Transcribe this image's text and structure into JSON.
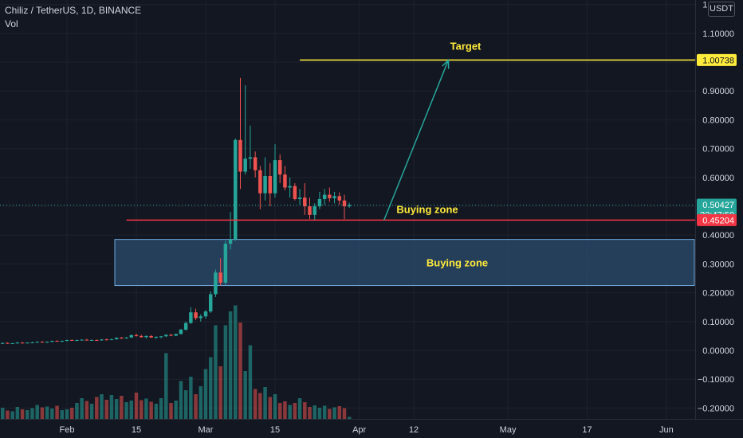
{
  "legend": {
    "symbol": "Chiliz / TetherUS, 1D, BINANCE",
    "volume_label": "Vol"
  },
  "currency_badge": "USDT",
  "colors": {
    "background": "#131722",
    "up": "#26a69a",
    "down": "#ef5350",
    "target": "#ffeb3b",
    "support": "#f23645",
    "zone_fill": "#2a4a6b",
    "zone_border": "#6fa8dc",
    "arrow": "#26a69a",
    "axis_text": "#d1d4dc"
  },
  "chart_data": {
    "type": "candlestick",
    "y_axis": {
      "ticks": [
        "1.20000",
        "1.10000",
        "1.00000",
        "0.90000",
        "0.80000",
        "0.70000",
        "0.60000",
        "0.50000",
        "0.40000",
        "0.30000",
        "0.20000",
        "0.10000",
        "0.00000",
        "−0.10000",
        "−0.20000"
      ],
      "tick_values": [
        1.2,
        1.1,
        1.0,
        0.9,
        0.8,
        0.7,
        0.6,
        0.5,
        0.4,
        0.3,
        0.2,
        0.1,
        0.0,
        -0.1,
        -0.2
      ],
      "ylim": [
        -0.22,
        1.21
      ]
    },
    "x_axis": {
      "ticks": [
        "Feb",
        "15",
        "Mar",
        "15",
        "Apr",
        "12",
        "May",
        "17",
        "Jun"
      ],
      "tick_days": [
        31,
        45,
        59,
        73,
        90,
        101,
        120,
        136,
        152
      ],
      "xlim": [
        10,
        162
      ]
    },
    "price_labels": [
      {
        "text": "1.00738",
        "value": 1.00738,
        "kind": "target"
      },
      {
        "text": "0.50427",
        "value": 0.50427,
        "kind": "last",
        "countdown": "22:47:50"
      },
      {
        "text": "0.45204",
        "value": 0.45204,
        "kind": "support"
      }
    ],
    "annotations": {
      "target_label": "Target",
      "zone_label": "Buying zone",
      "line_label": "Buying zone",
      "target_line": {
        "value": 1.00738,
        "day_from": 78,
        "day_to": 161
      },
      "support_line": {
        "value": 0.45204,
        "day_from": 43,
        "day_to": 162
      },
      "zone": {
        "top": 0.385,
        "bottom": 0.225,
        "day_from": 6,
        "day_to": 162
      },
      "arrow": {
        "from_day": 95,
        "from_value": 0.45204,
        "to_day": 108,
        "to_value": 1.00738
      }
    },
    "start_day": 10,
    "candles": [
      [
        0.022,
        0.024,
        0.02,
        0.023
      ],
      [
        0.023,
        0.025,
        0.021,
        0.022
      ],
      [
        0.022,
        0.024,
        0.02,
        0.021
      ],
      [
        0.021,
        0.024,
        0.019,
        0.023
      ],
      [
        0.023,
        0.026,
        0.021,
        0.024
      ],
      [
        0.024,
        0.026,
        0.022,
        0.023
      ],
      [
        0.023,
        0.025,
        0.021,
        0.022
      ],
      [
        0.022,
        0.024,
        0.02,
        0.023
      ],
      [
        0.023,
        0.027,
        0.022,
        0.026
      ],
      [
        0.026,
        0.028,
        0.023,
        0.024
      ],
      [
        0.024,
        0.026,
        0.022,
        0.025
      ],
      [
        0.025,
        0.029,
        0.023,
        0.027
      ],
      [
        0.027,
        0.029,
        0.024,
        0.025
      ],
      [
        0.025,
        0.028,
        0.024,
        0.027
      ],
      [
        0.027,
        0.03,
        0.025,
        0.028
      ],
      [
        0.028,
        0.031,
        0.026,
        0.03
      ],
      [
        0.03,
        0.032,
        0.027,
        0.028
      ],
      [
        0.028,
        0.031,
        0.026,
        0.03
      ],
      [
        0.03,
        0.034,
        0.028,
        0.033
      ],
      [
        0.033,
        0.035,
        0.03,
        0.031
      ],
      [
        0.031,
        0.034,
        0.029,
        0.033
      ],
      [
        0.033,
        0.037,
        0.031,
        0.036
      ],
      [
        0.036,
        0.038,
        0.033,
        0.034
      ],
      [
        0.034,
        0.037,
        0.032,
        0.036
      ],
      [
        0.036,
        0.039,
        0.034,
        0.037
      ],
      [
        0.037,
        0.04,
        0.034,
        0.035
      ],
      [
        0.035,
        0.038,
        0.033,
        0.036
      ],
      [
        0.036,
        0.038,
        0.034,
        0.035
      ],
      [
        0.035,
        0.039,
        0.033,
        0.038
      ],
      [
        0.038,
        0.041,
        0.035,
        0.037
      ],
      [
        0.037,
        0.04,
        0.035,
        0.039
      ],
      [
        0.039,
        0.045,
        0.037,
        0.044
      ],
      [
        0.044,
        0.047,
        0.04,
        0.042
      ],
      [
        0.042,
        0.046,
        0.04,
        0.045
      ],
      [
        0.045,
        0.055,
        0.043,
        0.053
      ],
      [
        0.053,
        0.058,
        0.048,
        0.05
      ],
      [
        0.05,
        0.054,
        0.044,
        0.046
      ],
      [
        0.046,
        0.052,
        0.041,
        0.05
      ],
      [
        0.05,
        0.053,
        0.043,
        0.045
      ],
      [
        0.045,
        0.049,
        0.04,
        0.047
      ],
      [
        0.047,
        0.05,
        0.042,
        0.049
      ],
      [
        0.049,
        0.056,
        0.046,
        0.054
      ],
      [
        0.054,
        0.057,
        0.049,
        0.051
      ],
      [
        0.051,
        0.058,
        0.05,
        0.057
      ],
      [
        0.057,
        0.075,
        0.055,
        0.072
      ],
      [
        0.072,
        0.1,
        0.068,
        0.095
      ],
      [
        0.095,
        0.15,
        0.092,
        0.132
      ],
      [
        0.132,
        0.145,
        0.105,
        0.112
      ],
      [
        0.112,
        0.125,
        0.1,
        0.118
      ],
      [
        0.118,
        0.14,
        0.11,
        0.135
      ],
      [
        0.135,
        0.205,
        0.13,
        0.195
      ],
      [
        0.195,
        0.28,
        0.185,
        0.27
      ],
      [
        0.27,
        0.32,
        0.225,
        0.235
      ],
      [
        0.235,
        0.38,
        0.228,
        0.37
      ],
      [
        0.37,
        0.48,
        0.35,
        0.385
      ],
      [
        0.385,
        0.735,
        0.38,
        0.73
      ],
      [
        0.73,
        0.945,
        0.56,
        0.62
      ],
      [
        0.62,
        0.92,
        0.61,
        0.665
      ],
      [
        0.665,
        0.78,
        0.63,
        0.67
      ],
      [
        0.67,
        0.69,
        0.6,
        0.625
      ],
      [
        0.625,
        0.64,
        0.49,
        0.545
      ],
      [
        0.545,
        0.67,
        0.52,
        0.605
      ],
      [
        0.605,
        0.65,
        0.5,
        0.545
      ],
      [
        0.545,
        0.715,
        0.53,
        0.66
      ],
      [
        0.66,
        0.68,
        0.58,
        0.61
      ],
      [
        0.61,
        0.64,
        0.555,
        0.565
      ],
      [
        0.565,
        0.6,
        0.53,
        0.57
      ],
      [
        0.57,
        0.58,
        0.52,
        0.525
      ],
      [
        0.525,
        0.56,
        0.505,
        0.53
      ],
      [
        0.53,
        0.58,
        0.47,
        0.5
      ],
      [
        0.5,
        0.53,
        0.455,
        0.47
      ],
      [
        0.47,
        0.51,
        0.45,
        0.5
      ],
      [
        0.5,
        0.55,
        0.49,
        0.525
      ],
      [
        0.525,
        0.56,
        0.505,
        0.54
      ],
      [
        0.54,
        0.565,
        0.515,
        0.528
      ],
      [
        0.528,
        0.55,
        0.51,
        0.535
      ],
      [
        0.535,
        0.548,
        0.505,
        0.52
      ],
      [
        0.52,
        0.54,
        0.455,
        0.5
      ],
      [
        0.5,
        0.512,
        0.495,
        0.504
      ]
    ],
    "volumes": [
      0.25,
      0.18,
      0.22,
      0.15,
      0.2,
      0.17,
      0.23,
      0.16,
      0.28,
      0.21,
      0.19,
      0.3,
      0.24,
      0.22,
      0.27,
      0.35,
      0.29,
      0.31,
      0.26,
      0.33,
      0.22,
      0.24,
      0.28,
      0.4,
      0.52,
      0.45,
      0.38,
      0.55,
      0.62,
      0.48,
      0.6,
      0.5,
      0.58,
      0.42,
      0.46,
      0.66,
      0.47,
      0.51,
      0.43,
      0.38,
      0.52,
      1.65,
      0.4,
      0.46,
      0.95,
      0.72,
      1.06,
      0.62,
      0.82,
      1.25,
      1.55,
      2.35,
      1.32,
      2.35,
      2.7,
      2.85,
      2.42,
      1.2,
      1.85,
      0.75,
      0.65,
      0.8,
      0.55,
      0.62,
      0.4,
      0.44,
      0.35,
      0.4,
      0.52,
      0.42,
      0.3,
      0.34,
      0.28,
      0.33,
      0.25,
      0.29,
      0.32,
      0.27,
      0.05
    ]
  }
}
